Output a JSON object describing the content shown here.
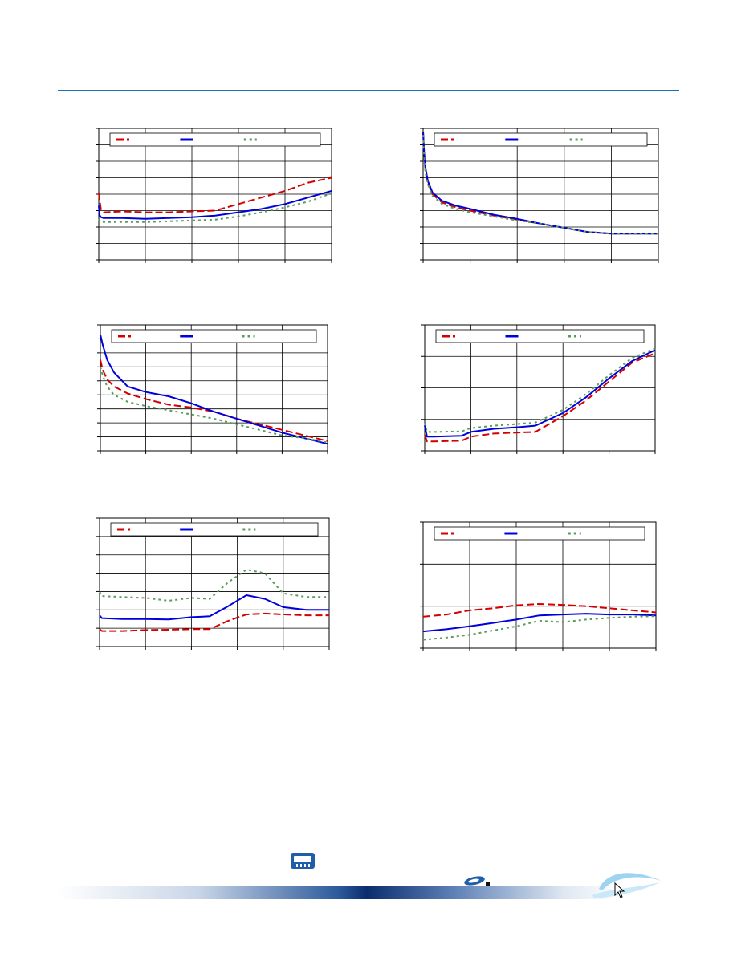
{
  "page": {
    "accent_color": "#1f6fb2",
    "footer_icons": [
      "chip-icon",
      "brand-mark-icon",
      "swoosh-logo-icon",
      "cursor-icon"
    ]
  },
  "series_style": {
    "colors": [
      "#d40000",
      "#0000dd",
      "#5a9a5a"
    ],
    "dashes": [
      "9 4",
      "",
      "3 4"
    ],
    "widths": [
      2,
      2,
      2
    ]
  },
  "chart_data": [
    {
      "type": "line",
      "title": "",
      "xlabel": "",
      "ylabel": "",
      "xlim": [
        0,
        5
      ],
      "ylim": [
        0,
        8
      ],
      "grid": true,
      "legend": "top",
      "series": [
        {
          "x": [
            0,
            0.02,
            0.05,
            0.1,
            0.5,
            1,
            1.5,
            2,
            2.5,
            3,
            3.5,
            4,
            4.5,
            5
          ],
          "values": [
            4.1,
            3.6,
            3.0,
            2.9,
            2.95,
            2.9,
            2.9,
            2.95,
            3.0,
            3.4,
            3.8,
            4.2,
            4.7,
            5.0
          ]
        },
        {
          "x": [
            0,
            0.02,
            0.05,
            0.1,
            0.5,
            1,
            1.5,
            2,
            2.5,
            3,
            3.5,
            4,
            4.5,
            5
          ],
          "values": [
            3.3,
            2.7,
            2.6,
            2.55,
            2.55,
            2.5,
            2.55,
            2.6,
            2.7,
            2.9,
            3.1,
            3.4,
            3.8,
            4.2
          ]
        },
        {
          "x": [
            0,
            0.02,
            0.05,
            0.1,
            0.5,
            1,
            1.5,
            2,
            2.5,
            3,
            3.5,
            4,
            4.5,
            5
          ],
          "values": [
            2.5,
            2.4,
            2.3,
            2.3,
            2.3,
            2.3,
            2.35,
            2.4,
            2.45,
            2.65,
            2.9,
            3.2,
            3.55,
            4.05
          ]
        }
      ]
    },
    {
      "type": "line",
      "title": "",
      "xlabel": "",
      "ylabel": "",
      "xlim": [
        0,
        5
      ],
      "ylim": [
        0,
        8
      ],
      "grid": true,
      "legend": "top",
      "series": [
        {
          "x": [
            0,
            0.02,
            0.05,
            0.1,
            0.2,
            0.4,
            0.7,
            1,
            1.5,
            2,
            2.5,
            3,
            3.5,
            4,
            4.5,
            5
          ],
          "values": [
            7.8,
            6.5,
            5.5,
            4.7,
            4.0,
            3.5,
            3.2,
            3.0,
            2.7,
            2.45,
            2.2,
            1.95,
            1.7,
            1.6,
            1.6,
            1.6
          ]
        },
        {
          "x": [
            0,
            0.02,
            0.05,
            0.1,
            0.2,
            0.4,
            0.7,
            1,
            1.5,
            2,
            2.5,
            3,
            3.5,
            4,
            4.5,
            5
          ],
          "values": [
            7.8,
            6.6,
            5.6,
            4.8,
            4.1,
            3.6,
            3.3,
            3.1,
            2.75,
            2.5,
            2.2,
            1.95,
            1.7,
            1.6,
            1.6,
            1.6
          ]
        },
        {
          "x": [
            0,
            0.02,
            0.05,
            0.1,
            0.2,
            0.4,
            0.7,
            1,
            1.5,
            2,
            2.5,
            3,
            3.5,
            4,
            4.5,
            5
          ],
          "values": [
            7.6,
            6.3,
            5.3,
            4.6,
            3.9,
            3.4,
            3.1,
            2.9,
            2.65,
            2.4,
            2.2,
            1.95,
            1.7,
            1.6,
            1.6,
            1.6
          ]
        }
      ]
    },
    {
      "type": "line",
      "title": "",
      "xlabel": "",
      "ylabel": "",
      "xlim": [
        0,
        5
      ],
      "ylim": [
        0,
        9
      ],
      "grid": true,
      "legend": "top",
      "series": [
        {
          "x": [
            0,
            0.05,
            0.15,
            0.3,
            0.6,
            1,
            1.5,
            2,
            2.5,
            3,
            3.5,
            4,
            4.5,
            5
          ],
          "values": [
            6.5,
            5.8,
            5.1,
            4.6,
            4.1,
            3.7,
            3.3,
            3.1,
            2.8,
            2.3,
            1.9,
            1.5,
            1.1,
            0.7
          ]
        },
        {
          "x": [
            0,
            0.05,
            0.15,
            0.3,
            0.6,
            1,
            1.5,
            2,
            2.5,
            3,
            3.5,
            4,
            4.5,
            5
          ],
          "values": [
            8.3,
            7.6,
            6.5,
            5.6,
            4.6,
            4.2,
            3.9,
            3.4,
            2.8,
            2.3,
            1.8,
            1.3,
            0.9,
            0.5
          ]
        },
        {
          "x": [
            0,
            0.05,
            0.15,
            0.3,
            0.6,
            1,
            1.5,
            2,
            2.5,
            3,
            3.5,
            4,
            4.5,
            5
          ],
          "values": [
            6.0,
            5.4,
            4.6,
            4.0,
            3.5,
            3.2,
            2.9,
            2.6,
            2.3,
            1.9,
            1.5,
            1.1,
            0.9,
            0.6
          ]
        }
      ]
    },
    {
      "type": "line",
      "title": "",
      "xlabel": "",
      "ylabel": "",
      "xlim": [
        0,
        5
      ],
      "ylim": [
        0,
        4
      ],
      "grid": true,
      "legend": "top",
      "series": [
        {
          "x": [
            0,
            0.05,
            0.2,
            0.8,
            1,
            1.5,
            2,
            2.4,
            3,
            3.5,
            4,
            4.5,
            5
          ],
          "values": [
            0.5,
            0.3,
            0.3,
            0.32,
            0.45,
            0.55,
            0.58,
            0.6,
            1.1,
            1.6,
            2.2,
            2.8,
            3.1
          ]
        },
        {
          "x": [
            0,
            0.05,
            0.2,
            0.8,
            1,
            1.5,
            2,
            2.4,
            3,
            3.5,
            4,
            4.5,
            5
          ],
          "values": [
            0.8,
            0.45,
            0.45,
            0.48,
            0.6,
            0.7,
            0.75,
            0.8,
            1.2,
            1.7,
            2.3,
            2.85,
            3.2
          ]
        },
        {
          "x": [
            0,
            0.05,
            0.2,
            0.8,
            1,
            1.5,
            2,
            2.4,
            3,
            3.5,
            4,
            4.5,
            5
          ],
          "values": [
            0.9,
            0.6,
            0.6,
            0.62,
            0.72,
            0.8,
            0.85,
            0.9,
            1.3,
            1.8,
            2.4,
            2.95,
            3.25
          ]
        }
      ]
    },
    {
      "type": "line",
      "title": "",
      "xlabel": "",
      "ylabel": "",
      "xlim": [
        0,
        5
      ],
      "ylim": [
        0,
        7
      ],
      "grid": true,
      "legend": "top",
      "series": [
        {
          "x": [
            0,
            0.05,
            0.5,
            1,
            1.5,
            2,
            2.4,
            2.8,
            3.2,
            3.6,
            4,
            4.5,
            5
          ],
          "values": [
            0.95,
            0.85,
            0.85,
            0.9,
            0.92,
            0.95,
            0.95,
            1.4,
            1.75,
            1.8,
            1.75,
            1.7,
            1.7
          ]
        },
        {
          "x": [
            0,
            0.05,
            0.5,
            1,
            1.5,
            2,
            2.4,
            2.8,
            3.2,
            3.6,
            4,
            4.5,
            5
          ],
          "values": [
            1.7,
            1.55,
            1.5,
            1.5,
            1.48,
            1.6,
            1.65,
            2.2,
            2.8,
            2.6,
            2.15,
            2.0,
            2.0
          ]
        },
        {
          "x": [
            0,
            0.05,
            0.5,
            1,
            1.5,
            2,
            2.4,
            2.8,
            3.2,
            3.6,
            4,
            4.5,
            5
          ],
          "values": [
            3.0,
            2.75,
            2.7,
            2.65,
            2.5,
            2.65,
            2.6,
            3.5,
            4.2,
            4.0,
            2.9,
            2.7,
            2.7
          ]
        }
      ]
    },
    {
      "type": "line",
      "title": "",
      "xlabel": "",
      "ylabel": "",
      "xlim": [
        0,
        5
      ],
      "ylim": [
        0,
        3
      ],
      "grid": true,
      "legend": "top",
      "series": [
        {
          "x": [
            0,
            0.5,
            1,
            1.5,
            2,
            2.5,
            3,
            3.5,
            4,
            4.5,
            5
          ],
          "values": [
            0.75,
            0.8,
            0.9,
            0.95,
            1.02,
            1.05,
            1.03,
            1.0,
            0.95,
            0.9,
            0.85
          ]
        },
        {
          "x": [
            0,
            0.5,
            1,
            1.5,
            2,
            2.5,
            3,
            3.5,
            4,
            4.5,
            5
          ],
          "values": [
            0.4,
            0.45,
            0.52,
            0.6,
            0.68,
            0.78,
            0.8,
            0.82,
            0.8,
            0.8,
            0.78
          ]
        },
        {
          "x": [
            0,
            0.5,
            1,
            1.5,
            2,
            2.5,
            3,
            3.5,
            4,
            4.5,
            5
          ],
          "values": [
            0.2,
            0.25,
            0.32,
            0.42,
            0.52,
            0.65,
            0.62,
            0.68,
            0.72,
            0.75,
            0.76
          ]
        }
      ]
    }
  ]
}
